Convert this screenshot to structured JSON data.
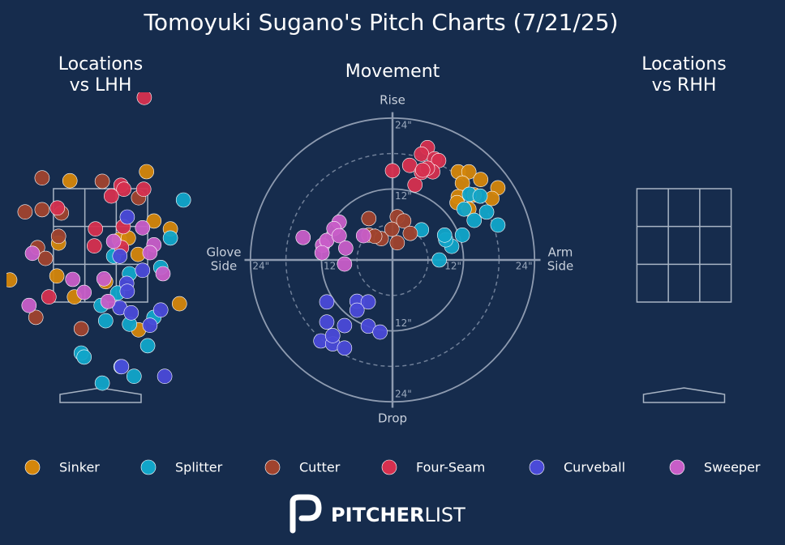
{
  "title": "Tomoyuki Sugano's Pitch Charts (7/21/25)",
  "pitch_types": [
    {
      "name": "Sinker",
      "color": "#d4860b"
    },
    {
      "name": "Splitter",
      "color": "#11a5c9"
    },
    {
      "name": "Cutter",
      "color": "#a0432e"
    },
    {
      "name": "Four-Seam",
      "color": "#d6304f"
    },
    {
      "name": "Curveball",
      "color": "#4a4ad8"
    },
    {
      "name": "Sweeper",
      "color": "#c85ec8"
    }
  ],
  "chart_data": [
    {
      "type": "location",
      "title": [
        "Locations",
        "vs LHH"
      ],
      "xlim": [
        -1.65,
        1.65
      ],
      "ylim": [
        -0.3,
        5.2
      ],
      "zone_x": [
        -0.83,
        0.83
      ],
      "zone_y": [
        1.5,
        3.5
      ],
      "series": [
        {
          "x": [
            -0.54,
            0.81,
            -0.74,
            -0.77,
            0.09,
            0.33,
            0.49,
            0.66,
            0.94,
            1.23,
            -0.46,
            1.39,
            0.67,
            -1.6
          ],
          "y": [
            3.64,
            3.8,
            2.54,
            1.96,
            1.86,
            2.6,
            2.63,
            2.34,
            2.93,
            2.79,
            1.59,
            1.47,
            1.01,
            1.89
          ]
        },
        {
          "x": [
            1.46,
            1.23,
            0.23,
            0.51,
            0.3,
            0.01,
            0.09,
            0.51,
            0.94,
            0.83,
            -0.34,
            -0.29,
            0.36,
            0.59,
            0.03,
            1.06
          ],
          "y": [
            3.3,
            2.63,
            2.31,
            2.0,
            1.66,
            1.44,
            1.17,
            1.11,
            1.23,
            0.73,
            0.6,
            0.53,
            0.36,
            0.19,
            0.07,
            2.11
          ]
        },
        {
          "x": [
            -1.03,
            0.03,
            -1.03,
            -1.33,
            -0.69,
            -0.74,
            -1.11,
            -0.97,
            0.67,
            -1.14,
            -0.34
          ],
          "y": [
            3.69,
            3.63,
            3.13,
            3.09,
            3.07,
            2.66,
            2.46,
            2.27,
            3.34,
            1.23,
            1.03
          ]
        },
        {
          "x": [
            0.77,
            0.36,
            0.41,
            0.19,
            0.76,
            -0.76,
            -0.09,
            -0.11,
            0.4,
            0.37,
            -0.91
          ],
          "y": [
            5.11,
            3.56,
            3.49,
            3.37,
            3.49,
            3.16,
            2.79,
            2.49,
            2.83,
            2.46,
            1.59
          ]
        },
        {
          "x": [
            0.47,
            0.34,
            0.74,
            0.46,
            0.47,
            0.34,
            0.54,
            0.87,
            1.06,
            0.37,
            1.13
          ],
          "y": [
            3.0,
            2.31,
            2.06,
            1.83,
            1.69,
            1.4,
            1.31,
            1.09,
            1.36,
            0.36,
            0.19
          ]
        },
        {
          "x": [
            -1.2,
            0.74,
            0.94,
            0.87,
            1.1,
            -0.49,
            0.06,
            -0.29,
            0.13,
            -1.26,
            0.23
          ],
          "y": [
            2.36,
            2.81,
            2.51,
            2.37,
            2.0,
            1.9,
            1.91,
            1.67,
            1.51,
            1.44,
            2.57
          ]
        }
      ]
    },
    {
      "type": "movement",
      "title": [
        "Movement"
      ],
      "xlim": [
        -25,
        25
      ],
      "ylim": [
        -25,
        25
      ],
      "rticks": [
        {
          "value": 12,
          "label": "12\""
        },
        {
          "value": 24,
          "label": "24\""
        }
      ],
      "minor_rticks": [
        6,
        18
      ],
      "axis_labels": {
        "top": [
          "Rise"
        ],
        "bottom": [
          "Drop"
        ],
        "left": [
          "Glove",
          "Side"
        ],
        "right": [
          "Arm",
          "Side"
        ]
      },
      "series": [
        {
          "x": [
            11.1,
            12.9,
            14.9,
            17.8,
            16.8,
            11.1,
            11.8,
            10.9,
            12.9,
            13.8
          ],
          "y": [
            14.9,
            14.9,
            13.6,
            12.2,
            10.4,
            10.7,
            13.0,
            9.7,
            8.6,
            11.0
          ]
        },
        {
          "x": [
            13.0,
            14.8,
            15.9,
            13.8,
            17.8,
            11.8,
            10.0,
            9.0,
            8.8,
            7.9,
            4.9,
            12.1
          ],
          "y": [
            11.1,
            10.8,
            8.1,
            6.7,
            5.9,
            4.2,
            2.3,
            3.4,
            4.2,
            0.0,
            5.1,
            8.6
          ]
        },
        {
          "x": [
            -4.0,
            0.8,
            1.9,
            -4.0,
            -1.9,
            0.8,
            3.0,
            -0.1,
            -3.0
          ],
          "y": [
            7.0,
            7.3,
            6.6,
            4.2,
            3.6,
            2.9,
            4.5,
            5.2,
            4.0
          ]
        },
        {
          "x": [
            0.0,
            2.9,
            3.8,
            4.9,
            5.9,
            4.9,
            7.1,
            7.8,
            6.8,
            5.9,
            5.1
          ],
          "y": [
            15.1,
            16.0,
            12.7,
            14.8,
            19.0,
            17.9,
            17.1,
            16.8,
            14.9,
            15.5,
            15.2
          ]
        },
        {
          "x": [
            -11.1,
            -6.0,
            -4.1,
            -6.0,
            -11.1,
            -8.1,
            -4.1,
            -2.1,
            -12.1,
            -10.1,
            -8.1,
            -10.1
          ],
          "y": [
            -7.1,
            -7.0,
            -7.1,
            -8.5,
            -10.5,
            -11.1,
            -11.2,
            -12.2,
            -13.7,
            -14.2,
            -14.9,
            -12.8
          ]
        },
        {
          "x": [
            -15.1,
            -11.8,
            -11.1,
            -9.0,
            -9.9,
            -9.0,
            -11.9,
            -8.1,
            -7.9,
            -4.9
          ],
          "y": [
            3.8,
            2.5,
            3.3,
            6.4,
            5.3,
            4.1,
            1.2,
            -0.7,
            2.0,
            4.1
          ]
        }
      ]
    },
    {
      "type": "location",
      "title": [
        "Locations",
        "vs RHH"
      ],
      "xlim": [
        -1.65,
        1.65
      ],
      "ylim": [
        -0.3,
        5.2
      ],
      "zone_x": [
        -0.83,
        0.83
      ],
      "zone_y": [
        1.5,
        3.5
      ],
      "series": []
    }
  ],
  "footer": {
    "brand_bold": "PITCHER",
    "brand_light": "LIST"
  }
}
